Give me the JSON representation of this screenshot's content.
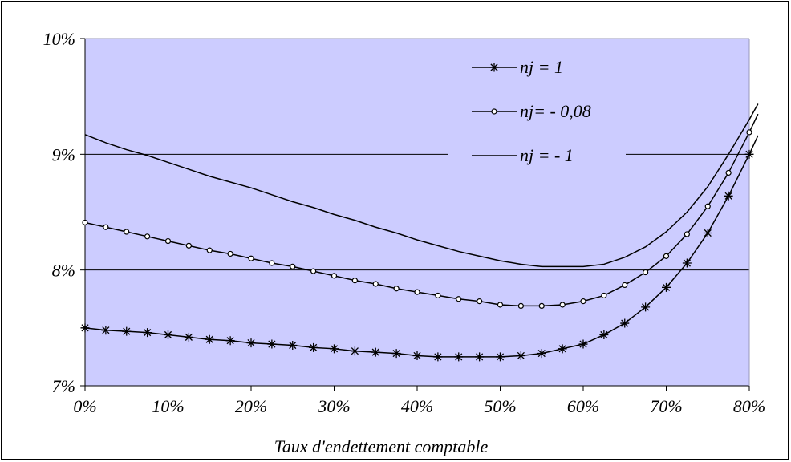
{
  "chart_data": {
    "type": "line",
    "title": "",
    "xlabel": "Taux d'endettement comptable",
    "ylabel": "",
    "x_ticks": [
      "0%",
      "10%",
      "20%",
      "30%",
      "40%",
      "50%",
      "60%",
      "70%",
      "80%"
    ],
    "y_ticks": [
      "7%",
      "8%",
      "9%",
      "10%"
    ],
    "xlim": [
      0,
      80
    ],
    "ylim": [
      7,
      10
    ],
    "grid": "horizontal",
    "legend_position": "top-right",
    "colors": {
      "plot_background": "#ccccff",
      "line": "#000000",
      "grid": "#000000"
    },
    "x": [
      0,
      2.5,
      5,
      7.5,
      10,
      12.5,
      15,
      17.5,
      20,
      22.5,
      25,
      27.5,
      30,
      32.5,
      35,
      37.5,
      40,
      42.5,
      45,
      47.5,
      50,
      52.5,
      55,
      57.5,
      60,
      62.5,
      65,
      67.5,
      70,
      72.5,
      75,
      77.5,
      80
    ],
    "series": [
      {
        "name": "nj = 1",
        "marker": "asterisk",
        "values": [
          7.5,
          7.48,
          7.47,
          7.46,
          7.44,
          7.42,
          7.4,
          7.39,
          7.37,
          7.36,
          7.35,
          7.33,
          7.32,
          7.3,
          7.29,
          7.28,
          7.26,
          7.25,
          7.25,
          7.25,
          7.25,
          7.26,
          7.28,
          7.32,
          7.36,
          7.44,
          7.54,
          7.68,
          7.85,
          8.06,
          8.32,
          8.64,
          9.0
        ]
      },
      {
        "name": "nj= - 0,08",
        "marker": "circle",
        "values": [
          8.41,
          8.37,
          8.33,
          8.29,
          8.25,
          8.21,
          8.17,
          8.14,
          8.1,
          8.06,
          8.03,
          7.99,
          7.95,
          7.91,
          7.88,
          7.84,
          7.81,
          7.78,
          7.75,
          7.73,
          7.7,
          7.69,
          7.69,
          7.7,
          7.73,
          7.78,
          7.87,
          7.98,
          8.12,
          8.31,
          8.55,
          8.84,
          9.19
        ]
      },
      {
        "name": "nj = - 1",
        "marker": "none",
        "values": [
          9.17,
          9.1,
          9.04,
          8.99,
          8.93,
          8.87,
          8.81,
          8.76,
          8.71,
          8.65,
          8.59,
          8.54,
          8.48,
          8.43,
          8.37,
          8.32,
          8.26,
          8.21,
          8.16,
          8.12,
          8.08,
          8.05,
          8.03,
          8.03,
          8.03,
          8.05,
          8.11,
          8.2,
          8.33,
          8.5,
          8.72,
          9.0,
          9.3
        ]
      }
    ]
  }
}
